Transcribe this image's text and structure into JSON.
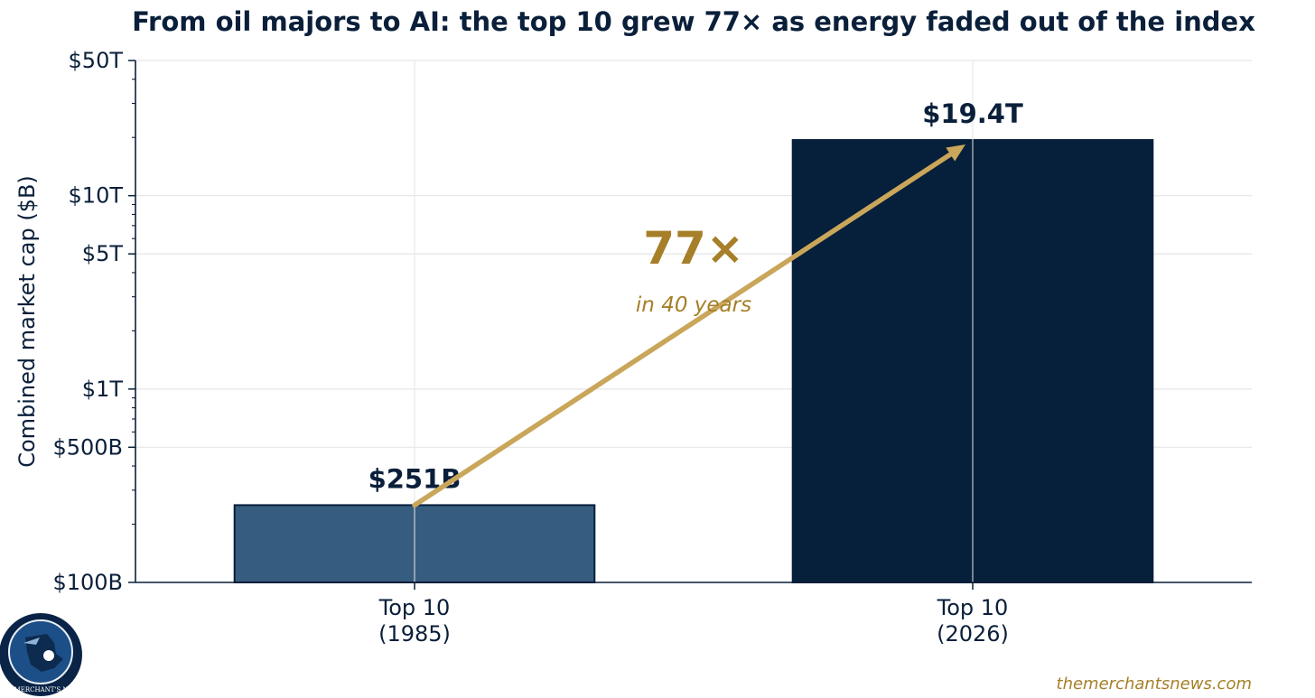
{
  "chart_data": {
    "type": "bar",
    "title": "From oil majors to AI: the top 10 grew 77× as energy faded out of the index",
    "ylabel": "Combined market cap ($B)",
    "yscale": "log",
    "ylim": [
      100,
      50000
    ],
    "yticks": [
      {
        "value": 100,
        "label": "$100B"
      },
      {
        "value": 500,
        "label": "$500B"
      },
      {
        "value": 1000,
        "label": "$1T"
      },
      {
        "value": 5000,
        "label": "$5T"
      },
      {
        "value": 10000,
        "label": "$10T"
      },
      {
        "value": 50000,
        "label": "$50T"
      }
    ],
    "categories": [
      {
        "line1": "Top 10",
        "line2": "(1985)"
      },
      {
        "line1": "Top 10",
        "line2": "(2026)"
      }
    ],
    "values": [
      251,
      19400
    ],
    "data_labels": [
      "$251B",
      "$19.4T"
    ],
    "bar_colors": [
      "#365c7f",
      "#061f3b"
    ],
    "grid": true,
    "annotation": {
      "multiplier": "77×",
      "subtitle": "in 40 years",
      "arrow_color": "#c9a65a",
      "text_color": "#a67f28"
    }
  },
  "footer": {
    "credit": "themerchantsnews.com",
    "logo_text": "THE MERCHANT'S NEWS"
  },
  "colors": {
    "text": "#0a1f3a",
    "grid": "#e6e6e6"
  }
}
